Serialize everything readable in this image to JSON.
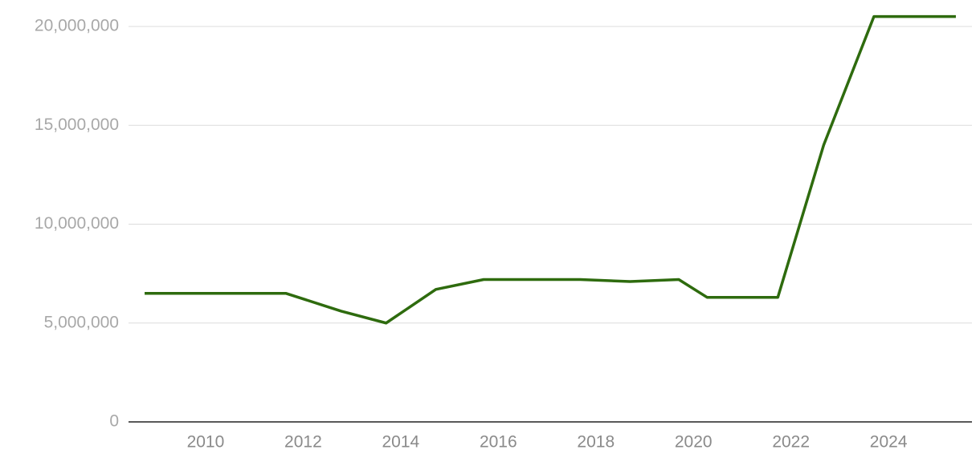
{
  "chart_data": {
    "type": "line",
    "x": [
      2008.75,
      2011.65,
      2012.78,
      2013.7,
      2014.72,
      2015.7,
      2017.68,
      2018.7,
      2019.7,
      2020.28,
      2021.73,
      2022.67,
      2023.7,
      2025.38
    ],
    "series": [
      {
        "color": "#2e6b0e",
        "values": [
          6500000,
          6500000,
          5600000,
          5000000,
          6700000,
          7200000,
          7200000,
          7100000,
          7200000,
          6300000,
          6300000,
          14000000,
          20500000,
          20500000
        ]
      }
    ],
    "xlim": [
      2008.42,
      2025.71
    ],
    "xticks": [
      2010,
      2012,
      2014,
      2016,
      2018,
      2020,
      2022,
      2024
    ],
    "ylim": [
      0,
      20000000
    ],
    "yticks": [
      0,
      {
        "value": 5000000,
        "label": "5,000,000"
      },
      {
        "value": 10000000,
        "label": "10,000,000"
      },
      {
        "value": 15000000,
        "label": "15,000,000"
      },
      {
        "value": 20000000,
        "label": "20,000,000"
      }
    ],
    "grid": true
  }
}
